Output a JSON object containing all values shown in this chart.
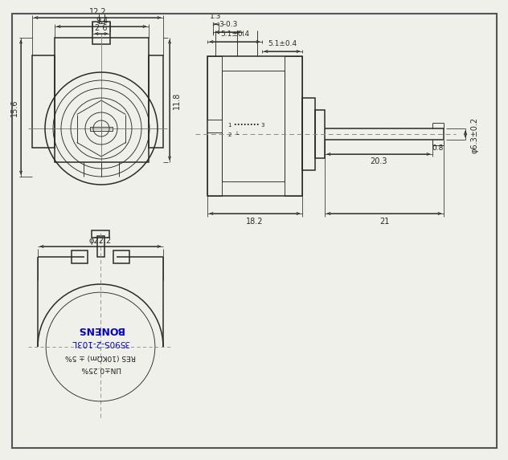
{
  "bg_color": "#f0f0eb",
  "line_color": "#2a2a2a",
  "dim_color": "#2a2a2a",
  "border_color": "#666666",
  "text_color_blue": "#0000cc",
  "text_color_dark": "#1a1a1a",
  "lw_main": 1.1,
  "lw_thin": 0.65,
  "lw_dim": 0.55,
  "fig_width": 6.13,
  "fig_height": 5.51,
  "labels": {
    "dim_12_2": "12.2",
    "dim_9_4": "9.4",
    "dim_2_6": "2 6",
    "dim_15_6": "15.6",
    "dim_11_8": "11.8",
    "dim_1_3": "1.3",
    "dim_3_0_3": "3-0.3",
    "dim_5_1_0_4_left": "5.1±0.4",
    "dim_5_1_0_4_right": "5.1±0.4",
    "dim_phi_6_3": "φ6.3±0.2",
    "dim_0_8": "0.8",
    "dim_20_3": "20.3",
    "dim_18_2": "18.2",
    "dim_21": "21",
    "dim_phi_22_2": "φ22.2",
    "label_bonens": "BONENS",
    "label_model": "3590S-2-103L",
    "label_res": "RES (10KΩm) ± 5%",
    "label_lin": "LIN±0.25%",
    "label_winding": "1 •••••••• 3",
    "label_tap": "2  └"
  }
}
